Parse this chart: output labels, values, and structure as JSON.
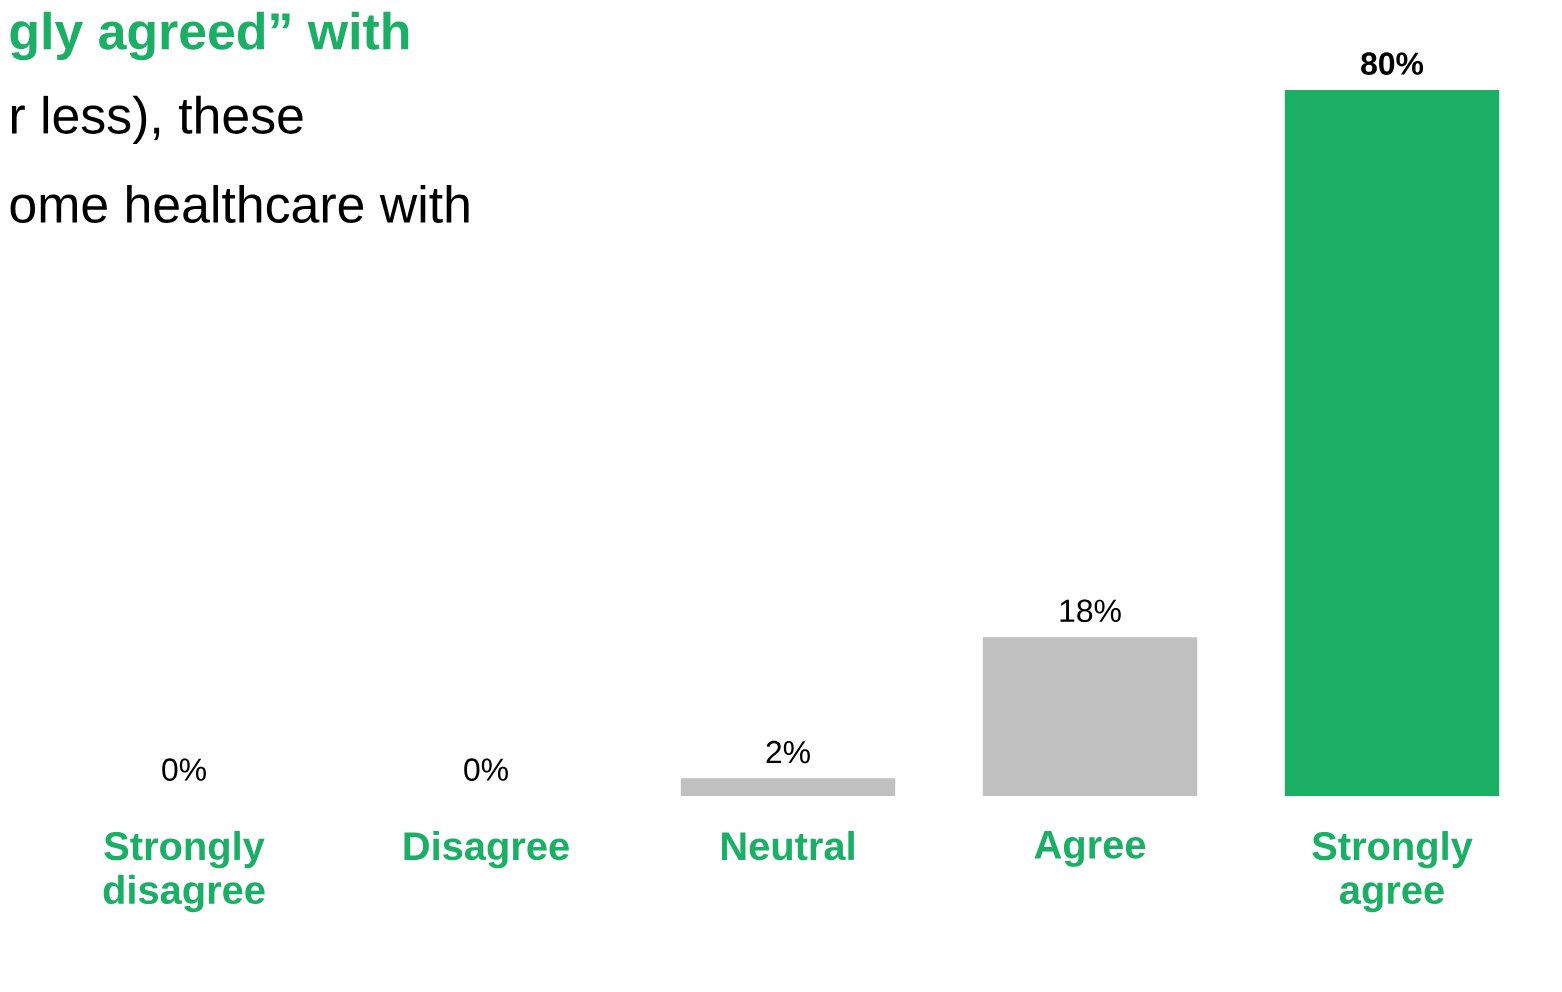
{
  "chart_data": {
    "type": "bar",
    "categories": [
      "Strongly disagree",
      "Disagree",
      "Neutral",
      "Agree",
      "Strongly agree"
    ],
    "values": [
      0,
      0,
      2,
      18,
      80
    ],
    "colors": [
      "#c0c0c0",
      "#c0c0c0",
      "#c0c0c0",
      "#c0c0c0",
      "#1aaf64"
    ],
    "value_labels": [
      "0%",
      "0%",
      "2%",
      "18%",
      "80%"
    ],
    "annotations": [
      "gly agreed” with",
      "r less), these",
      "ome healthcare with"
    ]
  }
}
